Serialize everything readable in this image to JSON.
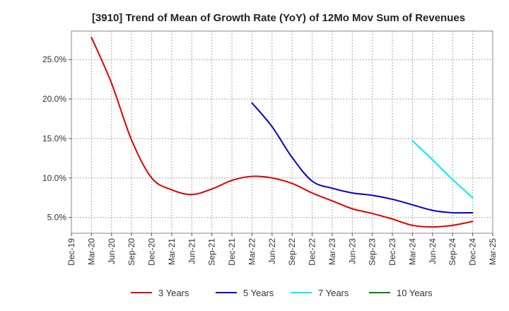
{
  "chart_data": {
    "type": "line",
    "title": "[3910]  Trend of Mean of Growth Rate (YoY) of 12Mo Mov Sum of Revenues",
    "xlabel": "",
    "ylabel": "",
    "x_tick_labels": [
      "Dec-19",
      "Mar-20",
      "Jun-20",
      "Sep-20",
      "Dec-20",
      "Mar-21",
      "Jun-21",
      "Sep-21",
      "Dec-21",
      "Mar-22",
      "Jun-22",
      "Sep-22",
      "Dec-22",
      "Mar-23",
      "Jun-23",
      "Sep-23",
      "Dec-23",
      "Mar-24",
      "Jun-24",
      "Sep-24",
      "Dec-24",
      "Mar-25"
    ],
    "y_ticks": [
      5,
      10,
      15,
      20,
      25
    ],
    "y_tick_labels": [
      "5.0%",
      "10.0%",
      "15.0%",
      "20.0%",
      "25.0%"
    ],
    "ylim": [
      3,
      28.6
    ],
    "grid": true,
    "legend_position": "bottom",
    "series": [
      {
        "name": "3 Years",
        "color": "#dd0000",
        "start_index": 1,
        "values": [
          27.8,
          22.0,
          14.8,
          10.0,
          8.5,
          7.9,
          8.6,
          9.7,
          10.2,
          10.0,
          9.3,
          8.1,
          7.1,
          6.1,
          5.5,
          4.8,
          4.0,
          3.8,
          4.0,
          4.5
        ]
      },
      {
        "name": "5 Years",
        "color": "#0000cc",
        "start_index": 9,
        "values": [
          19.5,
          16.5,
          12.6,
          9.6,
          8.7,
          8.1,
          7.8,
          7.3,
          6.6,
          5.9,
          5.6,
          5.6
        ]
      },
      {
        "name": "7 Years",
        "color": "#00eeee",
        "start_index": 17,
        "values": [
          14.7,
          12.3,
          9.8,
          7.5
        ]
      },
      {
        "name": "10 Years",
        "color": "#008000",
        "start_index": 0,
        "values": []
      }
    ]
  }
}
